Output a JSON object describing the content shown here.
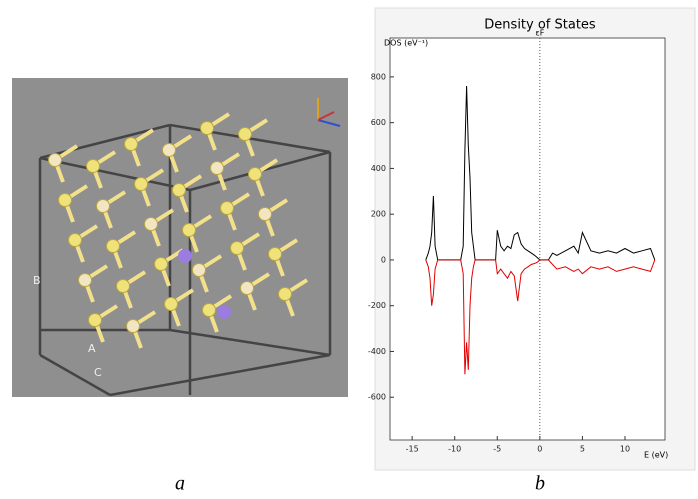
{
  "structure": {
    "labels": [
      "B",
      "A",
      "C"
    ]
  },
  "captions": [
    "a",
    "b"
  ],
  "chart_data": {
    "type": "line",
    "title": "Density of States",
    "y_label": "DOS (eV⁻¹)",
    "x_label": "E (eV)",
    "fermi_label": "εF",
    "fermi_level": 0,
    "xlim": [
      -17.6,
      14.7
    ],
    "xticks": [
      -15,
      -10,
      -5,
      0,
      5,
      10
    ],
    "ylim": [
      -787,
      970
    ],
    "yticks": [
      -600,
      -400,
      -200,
      0,
      200,
      400,
      600,
      800
    ],
    "x": [
      -13.4,
      -13.1,
      -12.9,
      -12.7,
      -12.5,
      -12.3,
      -12.0,
      -11,
      -10,
      -9.3,
      -9.0,
      -8.8,
      -8.6,
      -8.4,
      -8.2,
      -8.0,
      -7.8,
      -7.6,
      -7.0,
      -6.0,
      -5.2,
      -5.0,
      -4.6,
      -4.2,
      -3.8,
      -3.4,
      -3.0,
      -2.6,
      -2.2,
      -1.8,
      -1.4,
      -1.0,
      -0.6,
      -0.3,
      0,
      1,
      1.5,
      2,
      3,
      4,
      4.5,
      5,
      6,
      7,
      8,
      9,
      10,
      11,
      12,
      13,
      13.5
    ],
    "series": [
      {
        "color": "#000000",
        "values": [
          0,
          30,
          60,
          120,
          280,
          60,
          0,
          0,
          0,
          0,
          60,
          480,
          760,
          500,
          360,
          120,
          60,
          0,
          0,
          0,
          0,
          130,
          60,
          40,
          60,
          50,
          110,
          120,
          70,
          50,
          40,
          30,
          20,
          10,
          0,
          0,
          30,
          20,
          40,
          60,
          30,
          120,
          40,
          30,
          40,
          30,
          50,
          30,
          40,
          50,
          0
        ]
      },
      {
        "color": "#e00000",
        "values": [
          0,
          -30,
          -80,
          -200,
          -150,
          -40,
          0,
          0,
          0,
          0,
          -60,
          -500,
          -360,
          -480,
          -200,
          -80,
          -30,
          0,
          0,
          0,
          0,
          -60,
          -40,
          -60,
          -80,
          -50,
          -70,
          -180,
          -60,
          -40,
          -30,
          -20,
          -15,
          -10,
          0,
          0,
          -20,
          -40,
          -30,
          -50,
          -40,
          -60,
          -30,
          -40,
          -30,
          -50,
          -40,
          -30,
          -40,
          -50,
          0
        ]
      }
    ]
  }
}
